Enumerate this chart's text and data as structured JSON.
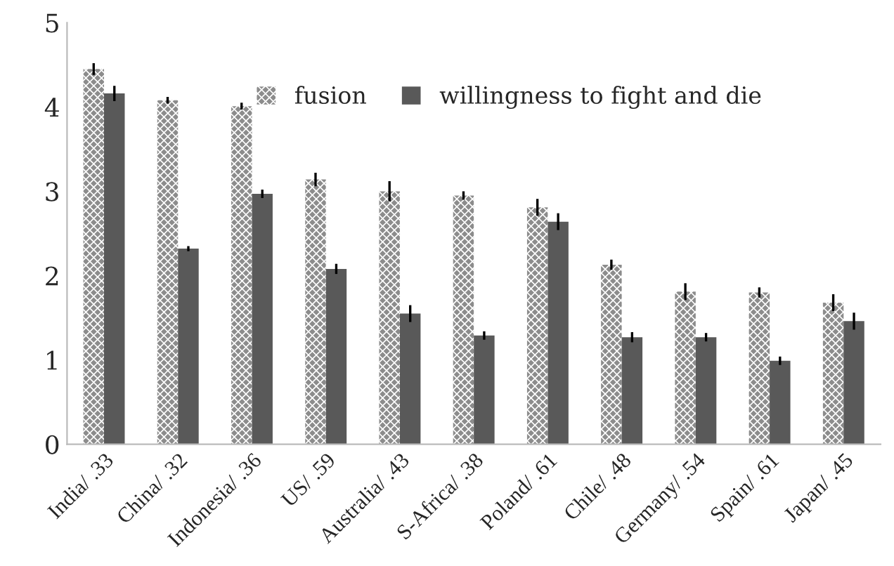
{
  "chart_data": {
    "type": "bar",
    "categories": [
      "India/ .33",
      "China/ .32",
      "Indonesia/ .36",
      "US/ .59",
      "Australia/ .43",
      "S-Africa/ .38",
      "Poland/ .61",
      "Chile/ .48",
      "Germany/ .54",
      "Spain/ .61",
      "Japan/ .45"
    ],
    "series": [
      {
        "name": "fusion",
        "color": "#8c8c8c",
        "values": [
          4.45,
          4.08,
          4.01,
          3.14,
          3.0,
          2.95,
          2.81,
          2.13,
          1.81,
          1.8,
          1.68
        ],
        "errors": [
          0.07,
          0.04,
          0.04,
          0.08,
          0.12,
          0.05,
          0.1,
          0.06,
          0.1,
          0.06,
          0.1
        ]
      },
      {
        "name": "willingness to fight and die",
        "color": "#595959",
        "values": [
          4.16,
          2.32,
          2.97,
          2.08,
          1.55,
          1.29,
          2.64,
          1.27,
          1.27,
          0.99,
          1.46
        ],
        "errors": [
          0.09,
          0.03,
          0.05,
          0.06,
          0.1,
          0.05,
          0.1,
          0.06,
          0.05,
          0.05,
          0.1
        ]
      }
    ],
    "ylim": [
      0,
      5
    ],
    "yticks": [
      0,
      1,
      2,
      3,
      4,
      5
    ],
    "grid": false,
    "legend": "top right"
  }
}
